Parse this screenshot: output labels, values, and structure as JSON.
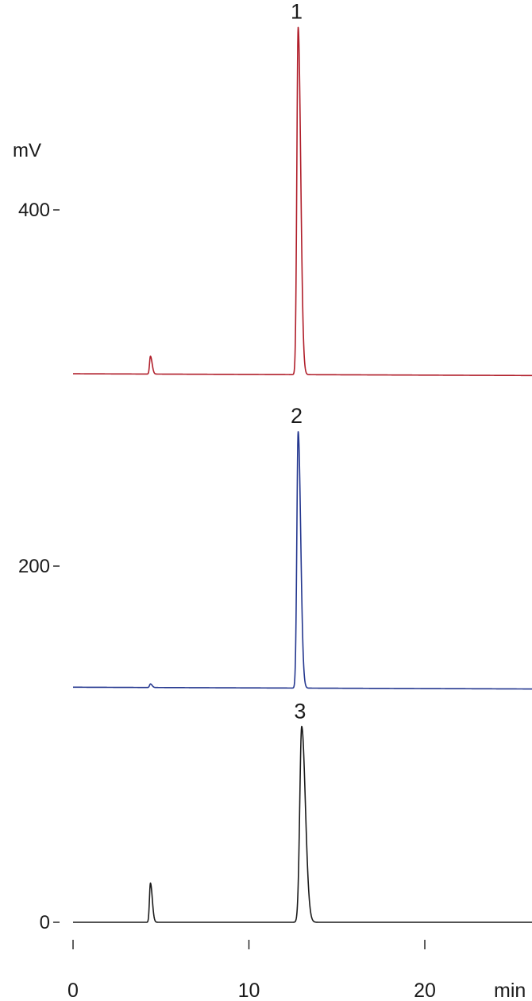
{
  "chart_data": {
    "type": "line",
    "title": "",
    "ylabel": "mV",
    "xunit": "min",
    "xlim": [
      0,
      26
    ],
    "ylim": [
      0,
      450
    ],
    "xticks": [
      {
        "value": 0,
        "label": "0"
      },
      {
        "value": 10,
        "label": "10"
      },
      {
        "value": 20,
        "label": "20"
      }
    ],
    "yticks": [
      {
        "value": 0,
        "label": "0"
      },
      {
        "value": 200,
        "label": "200"
      },
      {
        "value": 400,
        "label": "400"
      }
    ],
    "grid": false,
    "legend": "none",
    "series": [
      {
        "label": "1",
        "color": "#b01e2a",
        "baseline": 308,
        "drift_end": 307,
        "peaks": [
          {
            "rt": 4.4,
            "height": 10,
            "width": 0.05
          },
          {
            "rt": 12.8,
            "height": 195,
            "width": 0.075
          }
        ]
      },
      {
        "label": "2",
        "color": "#24378f",
        "baseline": 132,
        "drift_end": 131,
        "peaks": [
          {
            "rt": 4.4,
            "height": 2,
            "width": 0.05
          },
          {
            "rt": 12.8,
            "height": 144,
            "width": 0.075
          }
        ]
      },
      {
        "label": "3",
        "color": "#1a1a1a",
        "baseline": 0,
        "drift_end": 0,
        "peaks": [
          {
            "rt": 4.4,
            "height": 22,
            "width": 0.055
          },
          {
            "rt": 13.0,
            "height": 110,
            "width": 0.11
          }
        ]
      }
    ]
  }
}
